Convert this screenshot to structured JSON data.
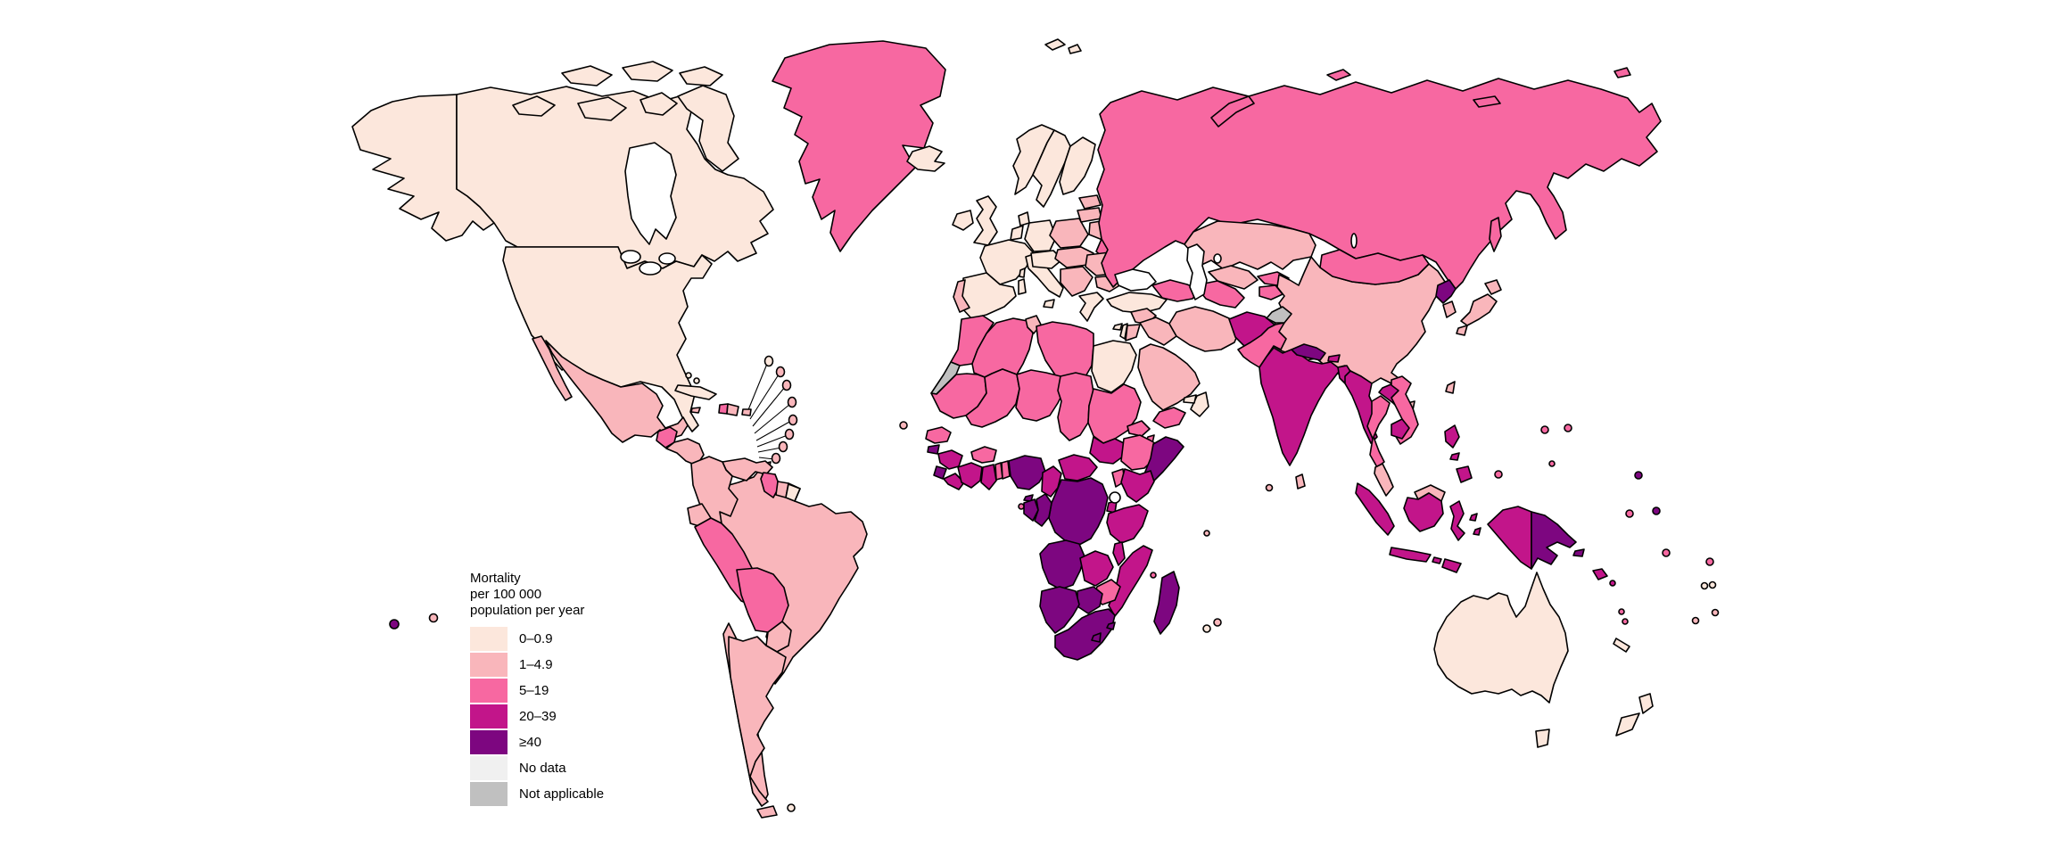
{
  "canvas": {
    "background": "#FFFFFF",
    "sea_color": "#FFFFFF",
    "border_color": "#000000"
  },
  "legend": {
    "title_lines": [
      "Mortality",
      "per 100 000",
      "population per year"
    ],
    "items": [
      {
        "key": "cat1",
        "label": "0–0.9",
        "color": "#FCE7DC"
      },
      {
        "key": "cat2",
        "label": "1–4.9",
        "color": "#F9B6BB"
      },
      {
        "key": "cat3",
        "label": "5–19",
        "color": "#F768A1"
      },
      {
        "key": "cat4",
        "label": "20–39",
        "color": "#C2158A"
      },
      {
        "key": "cat5",
        "label": "≥40",
        "color": "#7D0680"
      },
      {
        "key": "nodata",
        "label": "No data",
        "color": "#F0F0F0"
      },
      {
        "key": "na",
        "label": "Not applicable",
        "color": "#C0C0C0"
      }
    ]
  },
  "map": {
    "regions": {
      "canada": {
        "name": "Canada",
        "category": "cat1"
      },
      "usa": {
        "name": "United States of America",
        "category": "cat1"
      },
      "greenland": {
        "name": "Greenland",
        "category": "cat3"
      },
      "mexico": {
        "name": "Mexico",
        "category": "cat2"
      },
      "guatemala": {
        "name": "Guatemala",
        "category": "cat3"
      },
      "honduras_nicaragua": {
        "name": "Honduras & Nicaragua",
        "category": "cat2"
      },
      "costarica": {
        "name": "Costa Rica",
        "category": "cat1"
      },
      "panama": {
        "name": "Panama",
        "category": "cat2"
      },
      "cuba": {
        "name": "Cuba",
        "category": "cat1"
      },
      "bahamas": {
        "name": "Bahamas",
        "category": "cat1"
      },
      "jamaica": {
        "name": "Jamaica",
        "category": "cat2"
      },
      "haiti": {
        "name": "Haiti",
        "category": "cat3"
      },
      "dominicanrep": {
        "name": "Dominican Republic",
        "category": "cat2"
      },
      "puertorico": {
        "name": "Puerto Rico",
        "category": "cat2"
      },
      "antigua": {
        "name": "Antigua & Barbuda",
        "category": "cat1"
      },
      "lesser_antilles": {
        "name": "Lesser Antilles",
        "category": "cat2"
      },
      "trinidad": {
        "name": "Trinidad & Tobago",
        "category": "cat2"
      },
      "venezuela": {
        "name": "Venezuela",
        "category": "cat2"
      },
      "guyana": {
        "name": "Guyana",
        "category": "cat3"
      },
      "suriname": {
        "name": "Suriname",
        "category": "cat2"
      },
      "frenchguiana": {
        "name": "French Guiana",
        "category": "cat1"
      },
      "colombia": {
        "name": "Colombia",
        "category": "cat2"
      },
      "ecuador": {
        "name": "Ecuador",
        "category": "cat2"
      },
      "peru": {
        "name": "Peru",
        "category": "cat3"
      },
      "bolivia": {
        "name": "Bolivia",
        "category": "cat3"
      },
      "brazil": {
        "name": "Brazil",
        "category": "cat2"
      },
      "paraguay": {
        "name": "Paraguay",
        "category": "cat2"
      },
      "chile": {
        "name": "Chile",
        "category": "cat2"
      },
      "argentina": {
        "name": "Argentina",
        "category": "cat2"
      },
      "falkland": {
        "name": "Falkland Islands",
        "category": "cat1"
      },
      "capeverde": {
        "name": "Cabo Verde",
        "category": "cat2"
      },
      "iceland": {
        "name": "Iceland",
        "category": "cat1"
      },
      "ireland": {
        "name": "Ireland",
        "category": "cat1"
      },
      "uk": {
        "name": "United Kingdom",
        "category": "cat1"
      },
      "norway": {
        "name": "Norway",
        "category": "cat1"
      },
      "svalbard": {
        "name": "Svalbard (Norway)",
        "category": "cat1"
      },
      "sweden": {
        "name": "Sweden",
        "category": "cat1"
      },
      "finland": {
        "name": "Finland",
        "category": "cat1"
      },
      "denmark": {
        "name": "Denmark",
        "category": "cat1"
      },
      "netherlands_belgium": {
        "name": "Netherlands & Belgium",
        "category": "cat1"
      },
      "germany": {
        "name": "Germany",
        "category": "cat1"
      },
      "france": {
        "name": "France",
        "category": "cat1"
      },
      "portugal": {
        "name": "Portugal",
        "category": "cat2"
      },
      "spain": {
        "name": "Spain",
        "category": "cat1"
      },
      "italy": {
        "name": "Italy",
        "category": "cat1"
      },
      "switzerland_austria": {
        "name": "Switzerland & Austria",
        "category": "cat1"
      },
      "czech_hungary": {
        "name": "Czechia, Slovakia & Hungary",
        "category": "cat2"
      },
      "poland": {
        "name": "Poland",
        "category": "cat2"
      },
      "baltic_states": {
        "name": "Baltic States",
        "category": "cat2"
      },
      "belarus": {
        "name": "Belarus",
        "category": "cat2"
      },
      "ukraine": {
        "name": "Ukraine",
        "category": "cat3"
      },
      "romania": {
        "name": "Romania",
        "category": "cat2"
      },
      "bulgaria": {
        "name": "Bulgaria",
        "category": "cat2"
      },
      "balkans": {
        "name": "Western Balkans",
        "category": "cat2"
      },
      "greece": {
        "name": "Greece",
        "category": "cat1"
      },
      "turkey": {
        "name": "Turkey",
        "category": "cat1"
      },
      "cyprus": {
        "name": "Cyprus",
        "category": "cat1"
      },
      "russia": {
        "name": "Russian Federation",
        "category": "cat3"
      },
      "caucasus": {
        "name": "Caucasus (Georgia, Armenia, Azerbaijan)",
        "category": "cat3"
      },
      "kazakhstan": {
        "name": "Kazakhstan",
        "category": "cat2"
      },
      "uzbekistan": {
        "name": "Uzbekistan",
        "category": "cat2"
      },
      "turkmenistan": {
        "name": "Turkmenistan",
        "category": "cat3"
      },
      "kyrgyzstan": {
        "name": "Kyrgyzstan",
        "category": "cat3"
      },
      "tajikistan": {
        "name": "Tajikistan",
        "category": "cat3"
      },
      "china": {
        "name": "China",
        "category": "cat2"
      },
      "mongolia": {
        "name": "Mongolia",
        "category": "cat3"
      },
      "northkorea": {
        "name": "Democratic People's Republic of Korea",
        "category": "cat5"
      },
      "southkorea": {
        "name": "Republic of Korea",
        "category": "cat2"
      },
      "japan": {
        "name": "Japan",
        "category": "cat2"
      },
      "taiwan": {
        "name": "Taiwan (China)",
        "category": "cat2"
      },
      "syria": {
        "name": "Syrian Arab Republic",
        "category": "cat2"
      },
      "israel": {
        "name": "Israel",
        "category": "cat1"
      },
      "jordan": {
        "name": "Jordan",
        "category": "cat2"
      },
      "iraq": {
        "name": "Iraq",
        "category": "cat2"
      },
      "iran": {
        "name": "Iran",
        "category": "cat2"
      },
      "saudiarabia": {
        "name": "Saudi Arabia",
        "category": "cat2"
      },
      "yemen": {
        "name": "Yemen",
        "category": "cat3"
      },
      "oman": {
        "name": "Oman",
        "category": "cat1"
      },
      "uae": {
        "name": "United Arab Emirates",
        "category": "cat1"
      },
      "afghanistan": {
        "name": "Afghanistan",
        "category": "cat4"
      },
      "pakistan": {
        "name": "Pakistan",
        "category": "cat3"
      },
      "kashmir": {
        "name": "Kashmir (disputed)",
        "category": "na"
      },
      "india": {
        "name": "India",
        "category": "cat4"
      },
      "nepal": {
        "name": "Nepal",
        "category": "cat5"
      },
      "bhutan": {
        "name": "Bhutan",
        "category": "cat4"
      },
      "bangladesh": {
        "name": "Bangladesh",
        "category": "cat4"
      },
      "srilanka": {
        "name": "Sri Lanka",
        "category": "cat2"
      },
      "maldives": {
        "name": "Maldives",
        "category": "cat2"
      },
      "myanmar": {
        "name": "Myanmar",
        "category": "cat4"
      },
      "thailand": {
        "name": "Thailand",
        "category": "cat3"
      },
      "laos": {
        "name": "Lao People's Democratic Republic",
        "category": "cat4"
      },
      "vietnam": {
        "name": "Viet Nam",
        "category": "cat3"
      },
      "cambodia": {
        "name": "Cambodia",
        "category": "cat4"
      },
      "malaysia": {
        "name": "Malaysia",
        "category": "cat2"
      },
      "indonesia": {
        "name": "Indonesia",
        "category": "cat4"
      },
      "philippines": {
        "name": "Philippines",
        "category": "cat4"
      },
      "papuanewguinea": {
        "name": "Papua New Guinea",
        "category": "cat5"
      },
      "solomon": {
        "name": "Solomon Islands",
        "category": "cat4"
      },
      "palau": {
        "name": "Palau",
        "category": "cat3"
      },
      "micronesia": {
        "name": "Micronesia",
        "category": "cat3"
      },
      "guam": {
        "name": "Guam",
        "category": "cat3"
      },
      "marshallislands": {
        "name": "Marshall Islands",
        "category": "cat5"
      },
      "kiribati": {
        "name": "Kiribati",
        "category": "cat5"
      },
      "nauru": {
        "name": "Nauru",
        "category": "cat3"
      },
      "vanuatu": {
        "name": "Vanuatu",
        "category": "cat3"
      },
      "newcaledonia": {
        "name": "New Caledonia",
        "category": "cat1"
      },
      "fiji": {
        "name": "Fiji",
        "category": "cat3"
      },
      "samoa": {
        "name": "Samoa",
        "category": "cat1"
      },
      "tonga": {
        "name": "Tonga",
        "category": "cat2"
      },
      "tuvalu": {
        "name": "Tuvalu",
        "category": "cat5"
      },
      "frenchpolynesia": {
        "name": "French Polynesia",
        "category": "cat2"
      },
      "australia": {
        "name": "Australia",
        "category": "cat1"
      },
      "newzealand": {
        "name": "New Zealand",
        "category": "cat1"
      },
      "morocco": {
        "name": "Morocco",
        "category": "cat3"
      },
      "westernsahara": {
        "name": "Western Sahara",
        "category": "na"
      },
      "algeria": {
        "name": "Algeria",
        "category": "cat3"
      },
      "tunisia": {
        "name": "Tunisia",
        "category": "cat2"
      },
      "libya": {
        "name": "Libya",
        "category": "cat3"
      },
      "egypt": {
        "name": "Egypt",
        "category": "cat1"
      },
      "mauritania": {
        "name": "Mauritania",
        "category": "cat3"
      },
      "mali": {
        "name": "Mali",
        "category": "cat3"
      },
      "niger": {
        "name": "Niger",
        "category": "cat3"
      },
      "chad": {
        "name": "Chad",
        "category": "cat3"
      },
      "sudan": {
        "name": "Sudan",
        "category": "cat3"
      },
      "senegal": {
        "name": "Senegal",
        "category": "cat3"
      },
      "guineabissau": {
        "name": "Guinea-Bissau",
        "category": "cat5"
      },
      "guinea": {
        "name": "Guinea",
        "category": "cat4"
      },
      "sierraleone": {
        "name": "Sierra Leone",
        "category": "cat5"
      },
      "liberia": {
        "name": "Liberia",
        "category": "cat4"
      },
      "cotedivoire": {
        "name": "Côte d'Ivoire",
        "category": "cat4"
      },
      "burkinafaso": {
        "name": "Burkina Faso",
        "category": "cat3"
      },
      "ghana": {
        "name": "Ghana",
        "category": "cat4"
      },
      "togo": {
        "name": "Togo",
        "category": "cat3"
      },
      "benin": {
        "name": "Benin",
        "category": "cat3"
      },
      "nigeria": {
        "name": "Nigeria",
        "category": "cat5"
      },
      "cameroon": {
        "name": "Cameroon",
        "category": "cat4"
      },
      "car": {
        "name": "Central African Republic",
        "category": "cat4"
      },
      "southsudan": {
        "name": "South Sudan",
        "category": "cat4"
      },
      "eritrea": {
        "name": "Eritrea",
        "category": "cat3"
      },
      "djibouti": {
        "name": "Djibouti",
        "category": "cat3"
      },
      "ethiopia": {
        "name": "Ethiopia",
        "category": "cat3"
      },
      "somalia": {
        "name": "Somalia",
        "category": "cat5"
      },
      "uganda": {
        "name": "Uganda",
        "category": "cat3"
      },
      "kenya": {
        "name": "Kenya",
        "category": "cat4"
      },
      "rwanda_burundi": {
        "name": "Rwanda & Burundi",
        "category": "cat4"
      },
      "drc": {
        "name": "Democratic Republic of the Congo",
        "category": "cat5"
      },
      "congo": {
        "name": "Congo",
        "category": "cat5"
      },
      "gabon": {
        "name": "Gabon",
        "category": "cat5"
      },
      "eqguinea": {
        "name": "Equatorial Guinea",
        "category": "cat5"
      },
      "saotome": {
        "name": "Sao Tome & Principe",
        "category": "cat3"
      },
      "angola": {
        "name": "Angola",
        "category": "cat5"
      },
      "zambia": {
        "name": "Zambia",
        "category": "cat4"
      },
      "tanzania": {
        "name": "United Republic of Tanzania",
        "category": "cat4"
      },
      "malawi": {
        "name": "Malawi",
        "category": "cat4"
      },
      "mozambique": {
        "name": "Mozambique",
        "category": "cat4"
      },
      "zimbabwe": {
        "name": "Zimbabwe",
        "category": "cat3"
      },
      "botswana": {
        "name": "Botswana",
        "category": "cat5"
      },
      "namibia": {
        "name": "Namibia",
        "category": "cat5"
      },
      "southafrica": {
        "name": "South Africa",
        "category": "cat5"
      },
      "lesotho": {
        "name": "Lesotho",
        "category": "cat5"
      },
      "eswatini": {
        "name": "Eswatini",
        "category": "cat5"
      },
      "madagascar": {
        "name": "Madagascar",
        "category": "cat5"
      },
      "comoros": {
        "name": "Comoros",
        "category": "cat3"
      },
      "mauritius": {
        "name": "Mauritius",
        "category": "cat2"
      },
      "reunion": {
        "name": "Réunion",
        "category": "cat1"
      },
      "seychelles": {
        "name": "Seychelles",
        "category": "cat2"
      }
    }
  }
}
